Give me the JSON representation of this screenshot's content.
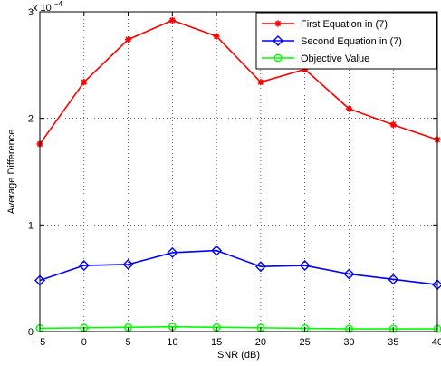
{
  "chart_data": {
    "type": "line",
    "xlabel": "SNR (dB)",
    "ylabel": "Average Difference",
    "y_exponent_label": "x 10",
    "y_exponent_power": "−4",
    "x": [
      -5,
      0,
      5,
      10,
      15,
      20,
      25,
      30,
      35,
      40
    ],
    "xlim": [
      -5,
      40
    ],
    "ylim": [
      0,
      3
    ],
    "x_ticks": [
      -5,
      0,
      5,
      10,
      15,
      20,
      25,
      30,
      35,
      40
    ],
    "x_tick_labels": [
      "−5",
      "0",
      "5",
      "10",
      "15",
      "20",
      "25",
      "30",
      "35",
      "40"
    ],
    "y_ticks": [
      0,
      1,
      2,
      3
    ],
    "y_tick_labels": [
      "0",
      "1",
      "2",
      "3"
    ],
    "grid": true,
    "legend_position": "top-right",
    "series": [
      {
        "name": "First Equation in (7)",
        "color": "#ff0000",
        "marker": "asterisk",
        "values": [
          1.76,
          2.34,
          2.74,
          2.92,
          2.77,
          2.34,
          2.46,
          2.09,
          1.94,
          1.8
        ]
      },
      {
        "name": "Second Equation in (7)",
        "color": "#0000ff",
        "marker": "diamond",
        "values": [
          0.48,
          0.62,
          0.63,
          0.74,
          0.76,
          0.61,
          0.62,
          0.54,
          0.49,
          0.44
        ]
      },
      {
        "name": "Objective Value",
        "color": "#00ff00",
        "marker": "circle",
        "values": [
          0.03,
          0.035,
          0.04,
          0.045,
          0.04,
          0.035,
          0.03,
          0.025,
          0.025,
          0.025
        ]
      }
    ]
  }
}
